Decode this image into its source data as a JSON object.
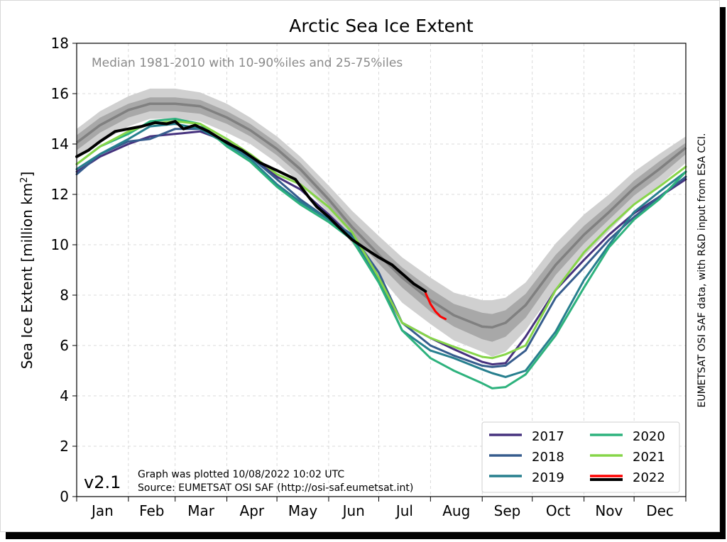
{
  "chart_data": {
    "type": "line",
    "title": "Arctic Sea Ice Extent",
    "ylabel_main": "Sea Ice Extent [million km",
    "ylabel_sup": "2",
    "ylabel_end": "]",
    "ylim": [
      0,
      18
    ],
    "yticks": [
      0,
      2,
      4,
      6,
      8,
      10,
      12,
      14,
      16,
      18
    ],
    "xlim": [
      1,
      366
    ],
    "months": [
      "Jan",
      "Feb",
      "Mar",
      "Apr",
      "May",
      "Jun",
      "Jul",
      "Aug",
      "Sep",
      "Oct",
      "Nov",
      "Dec"
    ],
    "grid": true,
    "legend_position": "lower-right",
    "annotation": "Median 1981-2010 with 10-90%iles and 25-75%iles",
    "version": "v2.1",
    "plotted": "Graph was plotted 10/08/2022 10:02 UTC",
    "source": "Source: EUMETSAT OSI SAF (http://osi-saf.eumetsat.int)",
    "side_note": "EUMETSAT OSI SAF data, with R&D input from ESA CCI.",
    "median": {
      "color": "#808080",
      "x": [
        1,
        15,
        32,
        45,
        60,
        75,
        91,
        105,
        121,
        135,
        152,
        166,
        182,
        196,
        213,
        227,
        244,
        250,
        258,
        270,
        288,
        305,
        320,
        335,
        350,
        366
      ],
      "values": [
        14.05,
        14.75,
        15.35,
        15.6,
        15.6,
        15.5,
        15.05,
        14.55,
        13.8,
        13.0,
        11.8,
        10.7,
        9.6,
        8.7,
        7.8,
        7.2,
        6.75,
        6.72,
        6.9,
        7.6,
        9.2,
        10.4,
        11.3,
        12.25,
        13.0,
        13.85
      ]
    },
    "band_10_90": {
      "color": "#d0d0d0",
      "upper": [
        14.6,
        15.3,
        15.9,
        16.2,
        16.2,
        16.05,
        15.6,
        15.05,
        14.3,
        13.5,
        12.35,
        11.35,
        10.35,
        9.5,
        8.7,
        8.1,
        7.8,
        7.8,
        7.9,
        8.5,
        10.05,
        11.2,
        12.0,
        12.9,
        13.6,
        14.3
      ],
      "lower": [
        13.4,
        14.05,
        14.7,
        15.0,
        15.0,
        14.9,
        14.45,
        14.0,
        13.25,
        12.45,
        11.25,
        10.05,
        8.8,
        7.7,
        6.85,
        6.2,
        5.75,
        5.55,
        5.75,
        6.6,
        8.25,
        9.55,
        10.55,
        11.55,
        12.35,
        13.25
      ]
    },
    "band_25_75": {
      "color": "#a8a8a8",
      "upper": [
        14.35,
        15.05,
        15.6,
        15.85,
        15.85,
        15.75,
        15.3,
        14.8,
        14.05,
        13.25,
        12.05,
        11.0,
        9.95,
        9.1,
        8.25,
        7.65,
        7.3,
        7.25,
        7.4,
        8.05,
        9.6,
        10.75,
        11.6,
        12.55,
        13.3,
        14.05
      ],
      "lower": [
        13.75,
        14.45,
        15.05,
        15.3,
        15.3,
        15.2,
        14.8,
        14.3,
        13.55,
        12.75,
        11.55,
        10.4,
        9.25,
        8.3,
        7.35,
        6.75,
        6.25,
        6.15,
        6.35,
        7.1,
        8.8,
        10.05,
        11.0,
        11.95,
        12.7,
        13.6
      ]
    },
    "years_x": [
      1,
      15,
      32,
      45,
      60,
      75,
      91,
      105,
      121,
      135,
      152,
      166,
      182,
      196,
      213,
      227,
      244,
      250,
      258,
      270,
      288,
      305,
      320,
      335,
      350,
      366
    ],
    "series": [
      {
        "name": "2017",
        "color": "#46327e",
        "width": 3,
        "values": [
          12.9,
          13.5,
          14.0,
          14.3,
          14.4,
          14.5,
          14.1,
          13.5,
          12.7,
          12.2,
          11.2,
          10.3,
          8.6,
          6.9,
          6.3,
          5.85,
          5.35,
          5.25,
          5.3,
          6.35,
          8.2,
          9.4,
          10.4,
          11.25,
          11.9,
          12.6
        ]
      },
      {
        "name": "2018",
        "color": "#365c8d",
        "width": 3,
        "values": [
          12.8,
          13.6,
          14.1,
          14.2,
          14.6,
          14.6,
          14.0,
          13.5,
          12.6,
          11.8,
          11.0,
          10.4,
          8.9,
          6.9,
          6.0,
          5.6,
          5.2,
          5.15,
          5.2,
          5.8,
          7.9,
          9.1,
          10.2,
          11.1,
          11.9,
          12.7
        ]
      },
      {
        "name": "2019",
        "color": "#277f8e",
        "width": 3,
        "values": [
          13.0,
          13.6,
          14.2,
          14.7,
          14.8,
          14.6,
          14.0,
          13.4,
          12.4,
          11.7,
          11.0,
          10.3,
          8.6,
          6.6,
          5.8,
          5.5,
          5.05,
          4.9,
          4.75,
          5.0,
          6.55,
          8.6,
          10.0,
          11.3,
          12.1,
          12.9
        ]
      },
      {
        "name": "2020",
        "color": "#2db27d",
        "width": 3,
        "values": [
          13.2,
          13.9,
          14.4,
          14.9,
          15.0,
          14.8,
          13.9,
          13.3,
          12.3,
          11.6,
          10.9,
          10.2,
          8.5,
          6.6,
          5.5,
          5.0,
          4.5,
          4.3,
          4.35,
          4.85,
          6.4,
          8.3,
          9.9,
          11.0,
          11.8,
          12.9
        ]
      },
      {
        "name": "2021",
        "color": "#86d549",
        "width": 3,
        "values": [
          13.2,
          13.9,
          14.5,
          14.8,
          14.9,
          14.8,
          14.2,
          13.6,
          12.8,
          12.4,
          11.5,
          10.5,
          8.7,
          6.9,
          6.3,
          5.95,
          5.55,
          5.5,
          5.65,
          6.0,
          8.2,
          9.7,
          10.7,
          11.6,
          12.3,
          13.1
        ]
      },
      {
        "name": "2022",
        "color": "#ff0000",
        "width": 3,
        "x": [
          210,
          213,
          216,
          219,
          222
        ],
        "values": [
          8.1,
          7.65,
          7.35,
          7.15,
          7.05
        ]
      },
      {
        "name": "2022",
        "color": "#000000",
        "width": 4,
        "legend": false,
        "x": [
          1,
          8,
          15,
          24,
          32,
          40,
          48,
          55,
          60,
          65,
          72,
          80,
          91,
          100,
          111,
          121,
          132,
          140,
          145,
          152,
          158,
          166,
          175,
          182,
          190,
          196,
          203,
          210
        ],
        "values": [
          13.5,
          13.75,
          14.1,
          14.5,
          14.6,
          14.7,
          14.85,
          14.8,
          14.9,
          14.6,
          14.75,
          14.5,
          14.05,
          13.75,
          13.25,
          12.95,
          12.6,
          11.9,
          11.5,
          11.1,
          10.7,
          10.2,
          9.8,
          9.5,
          9.2,
          8.85,
          8.45,
          8.15
        ]
      }
    ]
  }
}
